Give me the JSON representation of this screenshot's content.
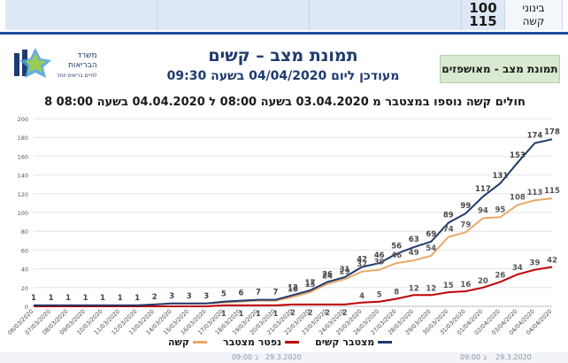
{
  "top_table": {
    "rows": [
      {
        "label": "בינוני",
        "value": "100"
      },
      {
        "label": "קשה",
        "value": "115"
      }
    ]
  },
  "logo": {
    "line1": "משרד",
    "line2": "הבריאות",
    "line3": "לחיים בריאים יותר"
  },
  "header": {
    "title": "תמונת מצב – קשים",
    "subtitle": "מעודכן ליום 04/04/2020 בשעה 09:30",
    "badge": "תמונת מצב - מאושפזים"
  },
  "bottom_strip": {
    "left_time": "09:00 ב",
    "left_date": "29.3.2020",
    "right_time": "09:00 ב",
    "right_date": "29.3.2020"
  },
  "colors": {
    "cumulative": "#1f3a6e",
    "severe": "#e9a869",
    "deaths": "#c00000",
    "grid": "#e4e4e4",
    "label": "#555555"
  },
  "chart_data": {
    "type": "line",
    "title": "חולים קשה נוספו במצטבר מ 03.04.2020 בשעה 08:00 ל 04.04.2020 בשעה 08:00 8",
    "ylim": [
      0,
      200
    ],
    "yticks": [
      0,
      20,
      40,
      60,
      80,
      100,
      120,
      140,
      160,
      180,
      200
    ],
    "categories": [
      "06/03/2020",
      "07/03/2020",
      "08/03/2020",
      "09/03/2020",
      "10/03/2020",
      "11/03/2020",
      "12/03/2020",
      "13/03/2020",
      "14/03/2020",
      "15/03/2020",
      "16/03/2020",
      "17/03/2020",
      "18/03/2020",
      "19/03/2020",
      "20/03/2020",
      "21/03/2020",
      "22/03/2020",
      "23/03/2020",
      "24/03/2020",
      "25/03/2020",
      "26/03/2020",
      "27/03/2020",
      "28/03/2020",
      "29/03/2020",
      "30/03/2020",
      "31/03/2020",
      "01/04/2020",
      "02/04/2020",
      "03/04/2020",
      "04/04/2020",
      "04/04/2020"
    ],
    "series": [
      {
        "name": "מצטבר קשים",
        "key": "cumulative",
        "values": [
          1,
          1,
          1,
          1,
          1,
          1,
          1,
          2,
          3,
          3,
          3,
          5,
          6,
          7,
          7,
          12,
          17,
          26,
          31,
          42,
          46,
          56,
          63,
          69,
          89,
          99,
          117,
          131,
          153,
          174,
          178
        ]
      },
      {
        "name": "קשה",
        "key": "severe",
        "values": [
          1,
          1,
          1,
          1,
          1,
          1,
          1,
          2,
          3,
          3,
          3,
          4,
          5,
          6,
          6,
          10,
          15,
          24,
          29,
          37,
          39,
          46,
          49,
          54,
          74,
          79,
          94,
          95,
          108,
          113,
          115
        ]
      },
      {
        "name": "נפטר מצטבר",
        "key": "deaths",
        "values": [
          0,
          0,
          0,
          0,
          0,
          0,
          0,
          0,
          0,
          0,
          0,
          1,
          1,
          1,
          1,
          2,
          2,
          2,
          2,
          4,
          5,
          8,
          12,
          12,
          15,
          16,
          20,
          26,
          34,
          39,
          42
        ]
      }
    ],
    "legend_order": [
      "מצטבר קשים",
      "נפטר מצטבר",
      "קשה"
    ]
  }
}
